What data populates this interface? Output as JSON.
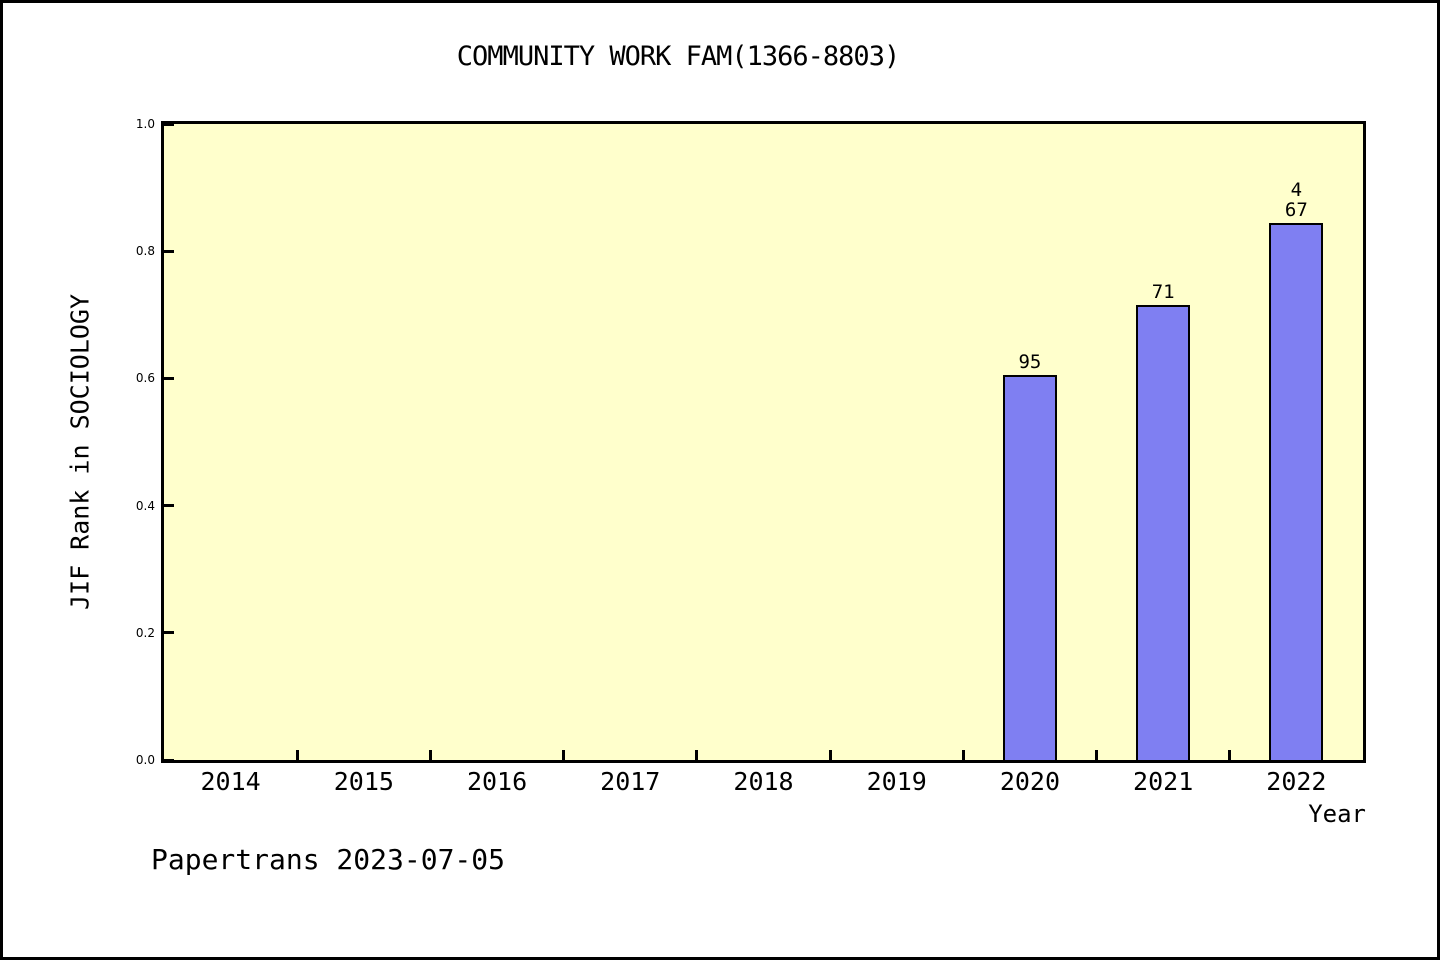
{
  "page": {
    "footer": "Papertrans 2023-07-05"
  },
  "chart_data": {
    "type": "bar",
    "title": "COMMUNITY WORK FAM(1366-8803)",
    "xlabel": "Year",
    "ylabel": "JIF Rank in SOCIOLOGY",
    "categories": [
      "2014",
      "2015",
      "2016",
      "2017",
      "2018",
      "2019",
      "2020",
      "2021",
      "2022"
    ],
    "series": [
      {
        "name": "JIF Rank in SOCIOLOGY",
        "values": [
          null,
          null,
          null,
          null,
          null,
          null,
          0.605,
          0.715,
          0.845
        ]
      }
    ],
    "bar_labels": [
      null,
      null,
      null,
      null,
      null,
      null,
      [
        "95"
      ],
      [
        "71"
      ],
      [
        "4",
        "67"
      ]
    ],
    "ylim": [
      0.0,
      1.0
    ],
    "yticks": [
      0.0,
      0.2,
      0.4,
      0.6,
      0.8,
      1.0
    ],
    "ytick_labels": [
      "0.0",
      "0.2",
      "0.4",
      "0.6",
      "0.8",
      "1.0"
    ],
    "grid": false,
    "legend": "none",
    "colors": {
      "bar_fill": "#7f7ff2",
      "bar_edge": "#000000",
      "plot_background": "#ffffcc",
      "page_background": "#ffffff",
      "text": "#000000"
    }
  }
}
